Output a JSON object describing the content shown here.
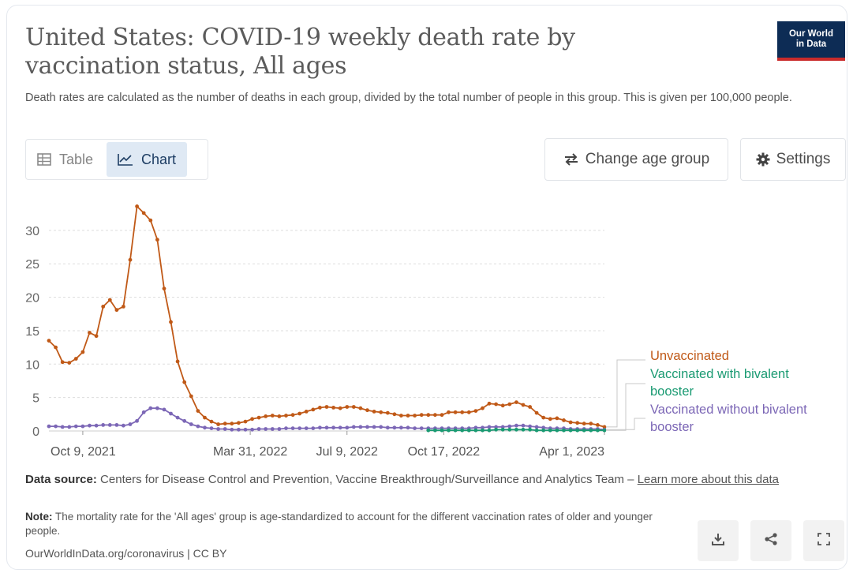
{
  "header": {
    "title": "United States: COVID-19 weekly death rate by vaccination status, All ages",
    "subtitle": "Death rates are calculated as the number of deaths in each group, divided by the total number of people in this group. This is given per 100,000 people.",
    "logo_line1": "Our World",
    "logo_line2": "in Data"
  },
  "tabs": [
    {
      "label": "Table",
      "icon": "table-icon",
      "active": false
    },
    {
      "label": "Chart",
      "icon": "line-chart-icon",
      "active": true
    }
  ],
  "buttons": {
    "change_age": "Change age group",
    "settings": "Settings"
  },
  "chart_data": {
    "type": "line",
    "title": "United States: COVID-19 weekly death rate by vaccination status, All ages",
    "xlabel": "",
    "ylabel": "",
    "x_ticks": [
      "Oct 9, 2021",
      "Mar 31, 2022",
      "Jul 9, 2022",
      "Oct 17, 2022",
      "Apr 1, 2023"
    ],
    "y_ticks": [
      "0",
      "5",
      "10",
      "15",
      "20",
      "25",
      "30"
    ],
    "ylim": [
      0,
      34
    ],
    "grid": "horizontal dashed",
    "legend_placement": "right, line-end labels",
    "series": [
      {
        "name": "Unvaccinated",
        "color": "#c05917",
        "x": [
          "2021-09-04",
          "2021-09-11",
          "2021-09-18",
          "2021-09-25",
          "2021-10-02",
          "2021-10-09",
          "2021-10-16",
          "2021-10-23",
          "2021-10-30",
          "2021-11-06",
          "2021-11-13",
          "2021-11-20",
          "2021-11-27",
          "2021-12-04",
          "2021-12-11",
          "2021-12-18",
          "2021-12-25",
          "2022-01-01",
          "2022-01-08",
          "2022-01-15",
          "2022-01-22",
          "2022-01-29",
          "2022-02-05",
          "2022-02-12",
          "2022-02-19",
          "2022-02-26",
          "2022-03-05",
          "2022-03-12",
          "2022-03-19",
          "2022-03-26",
          "2022-04-02",
          "2022-04-09",
          "2022-04-16",
          "2022-04-23",
          "2022-04-30",
          "2022-05-07",
          "2022-05-14",
          "2022-05-21",
          "2022-05-28",
          "2022-06-04",
          "2022-06-11",
          "2022-06-18",
          "2022-06-25",
          "2022-07-02",
          "2022-07-09",
          "2022-07-16",
          "2022-07-23",
          "2022-07-30",
          "2022-08-06",
          "2022-08-13",
          "2022-08-20",
          "2022-08-27",
          "2022-09-03",
          "2022-09-10",
          "2022-09-17",
          "2022-09-24",
          "2022-10-01",
          "2022-10-08",
          "2022-10-15",
          "2022-10-22",
          "2022-10-29",
          "2022-11-05",
          "2022-11-12",
          "2022-11-19",
          "2022-11-26",
          "2022-12-03",
          "2022-12-10",
          "2022-12-17",
          "2022-12-24",
          "2022-12-31",
          "2023-01-07",
          "2023-01-14",
          "2023-01-21",
          "2023-01-28",
          "2023-02-04",
          "2023-02-11",
          "2023-02-18",
          "2023-02-25",
          "2023-03-04",
          "2023-03-11",
          "2023-03-18",
          "2023-03-25",
          "2023-04-01"
        ],
        "values": [
          13.5,
          12.5,
          10.3,
          10.2,
          10.8,
          11.8,
          14.7,
          14.2,
          18.6,
          19.6,
          18.1,
          18.6,
          25.6,
          33.6,
          32.6,
          31.5,
          28.6,
          21.3,
          16.3,
          10.4,
          7.3,
          5.2,
          3.0,
          2.0,
          1.4,
          1.0,
          1.1,
          1.1,
          1.2,
          1.4,
          1.8,
          2.0,
          2.2,
          2.3,
          2.2,
          2.3,
          2.4,
          2.6,
          2.9,
          3.2,
          3.5,
          3.6,
          3.5,
          3.4,
          3.6,
          3.6,
          3.4,
          3.1,
          2.9,
          2.8,
          2.7,
          2.5,
          2.3,
          2.3,
          2.3,
          2.4,
          2.4,
          2.4,
          2.4,
          2.8,
          2.8,
          2.8,
          2.8,
          3.0,
          3.4,
          4.1,
          4.0,
          3.8,
          4.0,
          4.3,
          3.9,
          3.6,
          2.7,
          2.0,
          1.8,
          1.9,
          1.6,
          1.3,
          1.2,
          1.1,
          1.1,
          0.9,
          0.6
        ]
      },
      {
        "name": "Vaccinated without bivalent booster",
        "color": "#7c67b6",
        "x": [
          "2021-09-04",
          "2021-09-11",
          "2021-09-18",
          "2021-09-25",
          "2021-10-02",
          "2021-10-09",
          "2021-10-16",
          "2021-10-23",
          "2021-10-30",
          "2021-11-06",
          "2021-11-13",
          "2021-11-20",
          "2021-11-27",
          "2021-12-04",
          "2021-12-11",
          "2021-12-18",
          "2021-12-25",
          "2022-01-01",
          "2022-01-08",
          "2022-01-15",
          "2022-01-22",
          "2022-01-29",
          "2022-02-05",
          "2022-02-12",
          "2022-02-19",
          "2022-02-26",
          "2022-03-05",
          "2022-03-12",
          "2022-03-19",
          "2022-03-26",
          "2022-04-02",
          "2022-04-09",
          "2022-04-16",
          "2022-04-23",
          "2022-04-30",
          "2022-05-07",
          "2022-05-14",
          "2022-05-21",
          "2022-05-28",
          "2022-06-04",
          "2022-06-11",
          "2022-06-18",
          "2022-06-25",
          "2022-07-02",
          "2022-07-09",
          "2022-07-16",
          "2022-07-23",
          "2022-07-30",
          "2022-08-06",
          "2022-08-13",
          "2022-08-20",
          "2022-08-27",
          "2022-09-03",
          "2022-09-10",
          "2022-09-17",
          "2022-09-24",
          "2022-10-01",
          "2022-10-08",
          "2022-10-15",
          "2022-10-22",
          "2022-10-29",
          "2022-11-05",
          "2022-11-12",
          "2022-11-19",
          "2022-11-26",
          "2022-12-03",
          "2022-12-10",
          "2022-12-17",
          "2022-12-24",
          "2022-12-31",
          "2023-01-07",
          "2023-01-14",
          "2023-01-21",
          "2023-01-28",
          "2023-02-04",
          "2023-02-11",
          "2023-02-18",
          "2023-02-25",
          "2023-03-04",
          "2023-03-11",
          "2023-03-18",
          "2023-03-25",
          "2023-04-01"
        ],
        "values": [
          0.7,
          0.7,
          0.6,
          0.6,
          0.7,
          0.7,
          0.8,
          0.8,
          0.9,
          0.9,
          0.9,
          0.8,
          1.0,
          1.5,
          2.8,
          3.4,
          3.4,
          3.2,
          2.6,
          2.0,
          1.5,
          1.0,
          0.7,
          0.5,
          0.4,
          0.3,
          0.3,
          0.2,
          0.2,
          0.2,
          0.2,
          0.3,
          0.3,
          0.3,
          0.3,
          0.4,
          0.4,
          0.4,
          0.4,
          0.4,
          0.5,
          0.5,
          0.5,
          0.5,
          0.5,
          0.6,
          0.6,
          0.6,
          0.6,
          0.6,
          0.5,
          0.5,
          0.5,
          0.5,
          0.4,
          0.4,
          0.4,
          0.4,
          0.4,
          0.4,
          0.4,
          0.4,
          0.4,
          0.5,
          0.5,
          0.6,
          0.6,
          0.6,
          0.7,
          0.8,
          0.8,
          0.7,
          0.6,
          0.5,
          0.4,
          0.4,
          0.4,
          0.3,
          0.3,
          0.3,
          0.3,
          0.3,
          0.2
        ]
      },
      {
        "name": "Vaccinated with bivalent booster",
        "color": "#1a9a72",
        "x": [
          "2022-10-01",
          "2022-10-08",
          "2022-10-15",
          "2022-10-22",
          "2022-10-29",
          "2022-11-05",
          "2022-11-12",
          "2022-11-19",
          "2022-11-26",
          "2022-12-03",
          "2022-12-10",
          "2022-12-17",
          "2022-12-24",
          "2022-12-31",
          "2023-01-07",
          "2023-01-14",
          "2023-01-21",
          "2023-01-28",
          "2023-02-04",
          "2023-02-11",
          "2023-02-18",
          "2023-02-25",
          "2023-03-04",
          "2023-03-11",
          "2023-03-18",
          "2023-03-25",
          "2023-04-01"
        ],
        "values": [
          0.1,
          0.1,
          0.1,
          0.1,
          0.1,
          0.1,
          0.1,
          0.1,
          0.1,
          0.1,
          0.2,
          0.2,
          0.2,
          0.2,
          0.2,
          0.2,
          0.1,
          0.1,
          0.1,
          0.1,
          0.1,
          0.1,
          0.1,
          0.1,
          0.1,
          0.1,
          0.1
        ]
      }
    ],
    "legend_labels": [
      {
        "series": "Unvaccinated",
        "lines": [
          "Unvaccinated"
        ]
      },
      {
        "series": "Vaccinated with bivalent booster",
        "lines": [
          "Vaccinated with bivalent",
          "booster"
        ]
      },
      {
        "series": "Vaccinated without bivalent booster",
        "lines": [
          "Vaccinated without bivalent",
          "booster"
        ]
      }
    ]
  },
  "footer": {
    "source_label": "Data source:",
    "source_text": "Centers for Disease Control and Prevention, Vaccine Breakthrough/Surveillance and Analytics Team –",
    "source_link": "Learn more about this data",
    "note_label": "Note:",
    "note_text": "The mortality rate for the 'All ages' group is age-standardized to account for the different vaccination rates of older and younger people.",
    "url": "OurWorldInData.org/coronavirus | CC BY"
  },
  "actions": [
    {
      "icon": "download-icon"
    },
    {
      "icon": "share-icon"
    },
    {
      "icon": "fullscreen-icon"
    }
  ]
}
